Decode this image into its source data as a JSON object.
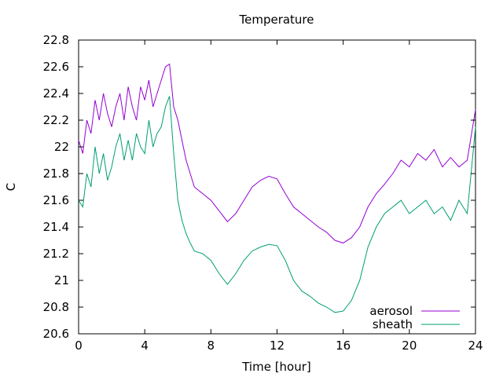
{
  "chart_data": {
    "type": "line",
    "title": "Temperature",
    "xlabel": "Time [hour]",
    "ylabel": "C",
    "xlim": [
      0,
      24
    ],
    "ylim": [
      20.6,
      22.8
    ],
    "xticks": [
      0,
      4,
      8,
      12,
      16,
      20,
      24
    ],
    "yticks": [
      20.6,
      20.8,
      21,
      21.2,
      21.4,
      21.6,
      21.8,
      22,
      22.2,
      22.4,
      22.6,
      22.8
    ],
    "ytick_labels": [
      "20.6",
      "20.8",
      "21",
      "21.2",
      "21.4",
      "21.6",
      "21.8",
      "22",
      "22.2",
      "22.4",
      "22.6",
      "22.8"
    ],
    "grid": false,
    "legend": "bottom-right",
    "series": [
      {
        "name": "aerosol",
        "color": "#9400d3",
        "x": [
          0,
          0.25,
          0.5,
          0.75,
          1,
          1.25,
          1.5,
          1.75,
          2,
          2.25,
          2.5,
          2.75,
          3,
          3.25,
          3.5,
          3.75,
          4,
          4.25,
          4.5,
          4.75,
          5,
          5.25,
          5.5,
          5.75,
          6,
          6.25,
          6.5,
          6.75,
          7,
          7.5,
          8,
          8.5,
          9,
          9.5,
          10,
          10.5,
          11,
          11.5,
          12,
          12.5,
          13,
          13.5,
          14,
          14.5,
          15,
          15.5,
          16,
          16.5,
          17,
          17.5,
          18,
          18.5,
          19,
          19.5,
          20,
          20.5,
          21,
          21.5,
          22,
          22.5,
          23,
          23.5,
          24
        ],
        "y": [
          22.05,
          21.95,
          22.2,
          22.1,
          22.35,
          22.2,
          22.4,
          22.25,
          22.15,
          22.3,
          22.4,
          22.2,
          22.45,
          22.3,
          22.2,
          22.45,
          22.35,
          22.5,
          22.3,
          22.4,
          22.5,
          22.6,
          22.62,
          22.3,
          22.2,
          22.05,
          21.9,
          21.8,
          21.7,
          21.65,
          21.6,
          21.52,
          21.44,
          21.5,
          21.6,
          21.7,
          21.75,
          21.78,
          21.76,
          21.65,
          21.55,
          21.5,
          21.45,
          21.4,
          21.36,
          21.3,
          21.28,
          21.32,
          21.4,
          21.55,
          21.65,
          21.72,
          21.8,
          21.9,
          21.85,
          21.95,
          21.9,
          21.98,
          21.85,
          21.92,
          21.85,
          21.9,
          22.28
        ]
      },
      {
        "name": "sheath",
        "color": "#009e73",
        "x": [
          0,
          0.25,
          0.5,
          0.75,
          1,
          1.25,
          1.5,
          1.75,
          2,
          2.25,
          2.5,
          2.75,
          3,
          3.25,
          3.5,
          3.75,
          4,
          4.25,
          4.5,
          4.75,
          5,
          5.25,
          5.5,
          5.75,
          6,
          6.25,
          6.5,
          6.75,
          7,
          7.5,
          8,
          8.5,
          9,
          9.5,
          10,
          10.5,
          11,
          11.5,
          12,
          12.5,
          13,
          13.5,
          14,
          14.5,
          15,
          15.5,
          16,
          16.5,
          17,
          17.5,
          18,
          18.5,
          19,
          19.5,
          20,
          20.5,
          21,
          21.5,
          22,
          22.5,
          23,
          23.5,
          24
        ],
        "y": [
          21.6,
          21.55,
          21.8,
          21.7,
          22.0,
          21.8,
          21.95,
          21.75,
          21.85,
          22.0,
          22.1,
          21.9,
          22.05,
          21.9,
          22.1,
          22.0,
          21.95,
          22.2,
          22.0,
          22.1,
          22.15,
          22.3,
          22.38,
          21.95,
          21.6,
          21.45,
          21.35,
          21.28,
          21.22,
          21.2,
          21.15,
          21.05,
          20.97,
          21.05,
          21.15,
          21.22,
          21.25,
          21.27,
          21.26,
          21.15,
          21.0,
          20.92,
          20.88,
          20.83,
          20.8,
          20.76,
          20.77,
          20.85,
          21.0,
          21.25,
          21.4,
          21.5,
          21.55,
          21.6,
          21.5,
          21.55,
          21.6,
          21.5,
          21.55,
          21.45,
          21.6,
          21.5,
          22.15
        ]
      }
    ]
  }
}
